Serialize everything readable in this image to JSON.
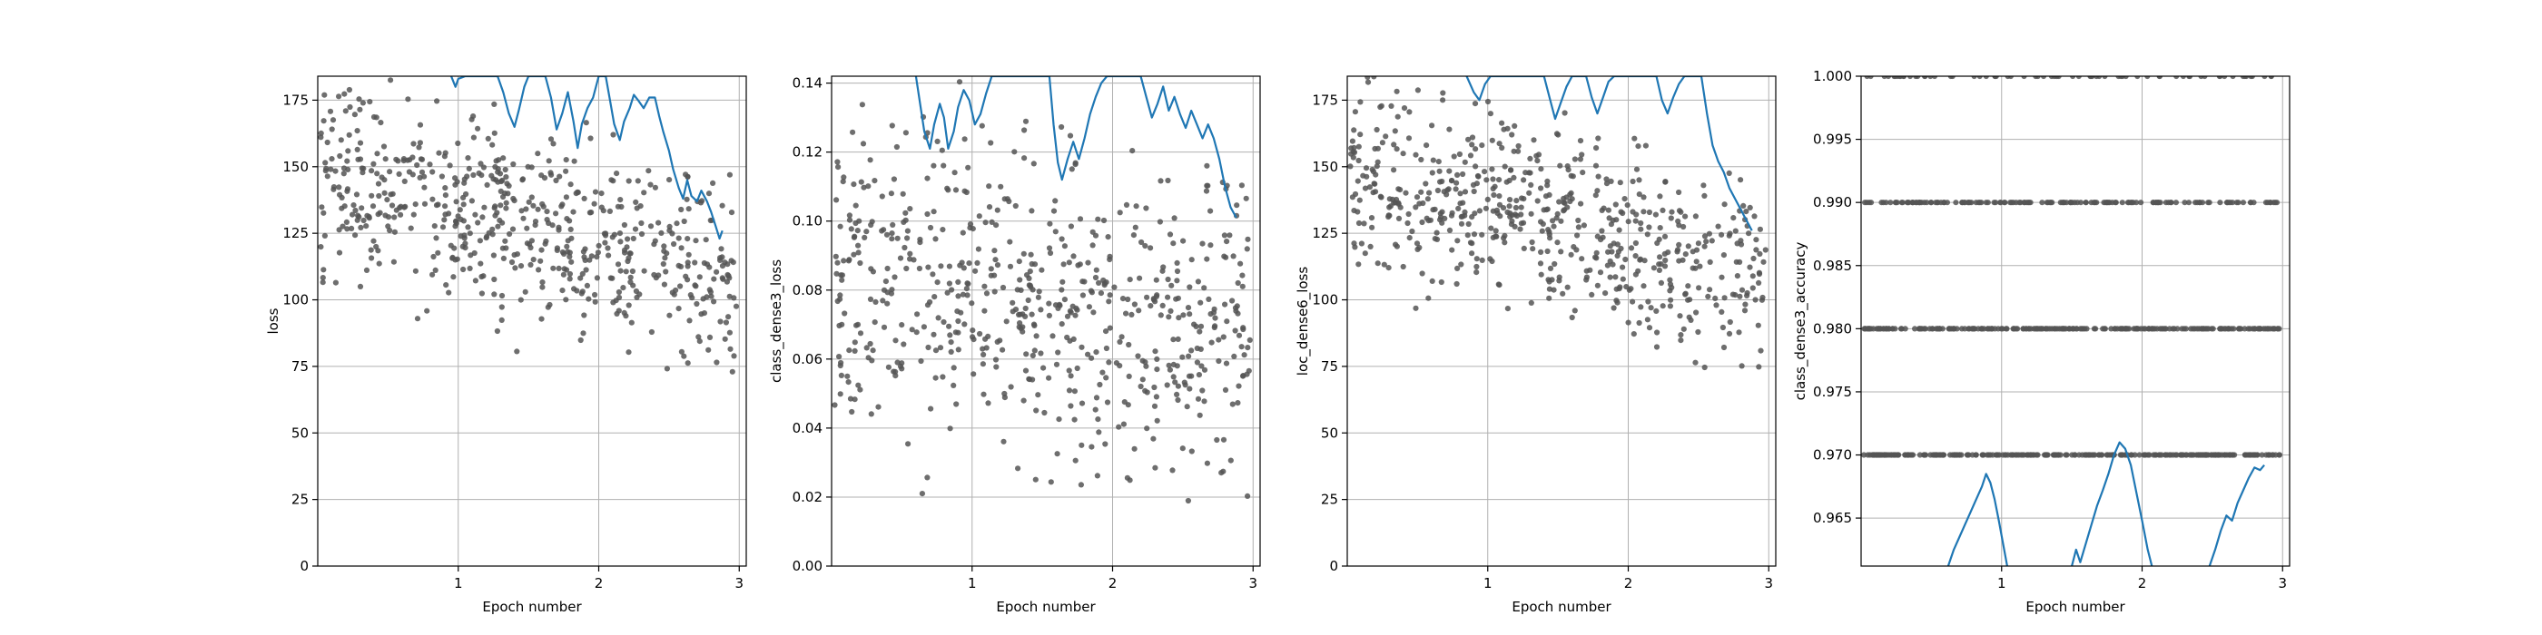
{
  "chart_data": [
    {
      "type": "scatter",
      "xlabel": "Epoch number",
      "ylabel": "loss",
      "xlim": [
        0,
        3.05
      ],
      "ylim": [
        0,
        184
      ],
      "xticks": [
        1,
        2,
        3
      ],
      "yticks": [
        0,
        25,
        50,
        75,
        100,
        125,
        150,
        175
      ],
      "ytick_labels": [
        "0",
        "25",
        "50",
        "75",
        "100",
        "125",
        "150",
        "175"
      ],
      "grid": true,
      "scatter_color": "#555555",
      "line_color": "#1f77b4",
      "scatter_seed": 11,
      "scatter_count": 600,
      "scatter_range": [
        60,
        184
      ],
      "scatter_center_start": 148,
      "scatter_center_end": 108,
      "scatter_spread": 32,
      "line_points": [
        [
          0.95,
          184
        ],
        [
          0.98,
          180
        ],
        [
          1.0,
          183
        ],
        [
          1.05,
          184
        ],
        [
          1.28,
          184
        ],
        [
          1.32,
          178
        ],
        [
          1.36,
          170
        ],
        [
          1.4,
          165
        ],
        [
          1.43,
          171
        ],
        [
          1.47,
          180
        ],
        [
          1.5,
          184
        ],
        [
          1.62,
          184
        ],
        [
          1.66,
          176
        ],
        [
          1.7,
          164
        ],
        [
          1.74,
          170
        ],
        [
          1.78,
          178
        ],
        [
          1.82,
          167
        ],
        [
          1.85,
          157
        ],
        [
          1.88,
          166
        ],
        [
          1.92,
          172
        ],
        [
          1.96,
          176
        ],
        [
          2.0,
          184
        ],
        [
          2.05,
          184
        ],
        [
          2.08,
          175
        ],
        [
          2.11,
          166
        ],
        [
          2.15,
          160
        ],
        [
          2.18,
          167
        ],
        [
          2.22,
          172
        ],
        [
          2.25,
          177
        ],
        [
          2.28,
          175
        ],
        [
          2.32,
          172
        ],
        [
          2.36,
          176
        ],
        [
          2.4,
          176
        ],
        [
          2.43,
          169
        ],
        [
          2.46,
          163
        ],
        [
          2.5,
          156
        ],
        [
          2.53,
          149
        ],
        [
          2.57,
          142
        ],
        [
          2.6,
          138
        ],
        [
          2.63,
          145
        ],
        [
          2.66,
          139
        ],
        [
          2.7,
          137
        ],
        [
          2.73,
          141
        ],
        [
          2.77,
          137
        ],
        [
          2.8,
          133
        ],
        [
          2.83,
          128
        ],
        [
          2.86,
          123
        ],
        [
          2.88,
          126
        ]
      ]
    },
    {
      "type": "scatter",
      "xlabel": "Epoch number",
      "ylabel": "class_dense3_loss",
      "xlim": [
        0,
        3.05
      ],
      "ylim": [
        0,
        0.142
      ],
      "xticks": [
        1,
        2,
        3
      ],
      "yticks": [
        0,
        0.02,
        0.04,
        0.06,
        0.08,
        0.1,
        0.12,
        0.14
      ],
      "ytick_labels": [
        "0.00",
        "0.02",
        "0.04",
        "0.06",
        "0.08",
        "0.10",
        "0.12",
        "0.14"
      ],
      "grid": true,
      "scatter_color": "#555555",
      "line_color": "#1f77b4",
      "scatter_seed": 23,
      "scatter_count": 620,
      "scatter_range": [
        0.004,
        0.142
      ],
      "scatter_center_start": 0.085,
      "scatter_center_end": 0.07,
      "scatter_spread": 0.04,
      "line_points": [
        [
          0.6,
          0.142
        ],
        [
          0.63,
          0.134
        ],
        [
          0.66,
          0.126
        ],
        [
          0.7,
          0.121
        ],
        [
          0.73,
          0.128
        ],
        [
          0.77,
          0.134
        ],
        [
          0.8,
          0.13
        ],
        [
          0.83,
          0.121
        ],
        [
          0.87,
          0.126
        ],
        [
          0.9,
          0.133
        ],
        [
          0.94,
          0.138
        ],
        [
          0.98,
          0.135
        ],
        [
          1.02,
          0.128
        ],
        [
          1.06,
          0.131
        ],
        [
          1.1,
          0.137
        ],
        [
          1.14,
          0.142
        ],
        [
          1.55,
          0.142
        ],
        [
          1.58,
          0.128
        ],
        [
          1.61,
          0.117
        ],
        [
          1.64,
          0.112
        ],
        [
          1.68,
          0.118
        ],
        [
          1.72,
          0.123
        ],
        [
          1.76,
          0.118
        ],
        [
          1.8,
          0.124
        ],
        [
          1.84,
          0.131
        ],
        [
          1.88,
          0.136
        ],
        [
          1.92,
          0.14
        ],
        [
          1.96,
          0.142
        ],
        [
          2.2,
          0.142
        ],
        [
          2.24,
          0.136
        ],
        [
          2.28,
          0.13
        ],
        [
          2.32,
          0.134
        ],
        [
          2.36,
          0.139
        ],
        [
          2.4,
          0.132
        ],
        [
          2.44,
          0.136
        ],
        [
          2.48,
          0.131
        ],
        [
          2.52,
          0.127
        ],
        [
          2.56,
          0.132
        ],
        [
          2.6,
          0.128
        ],
        [
          2.64,
          0.124
        ],
        [
          2.68,
          0.128
        ],
        [
          2.72,
          0.124
        ],
        [
          2.76,
          0.118
        ],
        [
          2.8,
          0.11
        ],
        [
          2.84,
          0.104
        ],
        [
          2.88,
          0.101
        ]
      ]
    },
    {
      "type": "scatter",
      "xlabel": "Epoch number",
      "ylabel": "loc_dense6_loss",
      "xlim": [
        0,
        3.05
      ],
      "ylim": [
        0,
        184
      ],
      "xticks": [
        1,
        2,
        3
      ],
      "yticks": [
        0,
        25,
        50,
        75,
        100,
        125,
        150,
        175
      ],
      "ytick_labels": [
        "0",
        "25",
        "50",
        "75",
        "100",
        "125",
        "150",
        "175"
      ],
      "grid": true,
      "scatter_color": "#555555",
      "line_color": "#1f77b4",
      "scatter_seed": 37,
      "scatter_count": 600,
      "scatter_range": [
        60,
        184
      ],
      "scatter_center_start": 148,
      "scatter_center_end": 108,
      "scatter_spread": 32,
      "line_points": [
        [
          0.85,
          184
        ],
        [
          0.9,
          178
        ],
        [
          0.94,
          175
        ],
        [
          0.98,
          181
        ],
        [
          1.02,
          184
        ],
        [
          1.4,
          184
        ],
        [
          1.44,
          176
        ],
        [
          1.48,
          168
        ],
        [
          1.52,
          174
        ],
        [
          1.56,
          180
        ],
        [
          1.6,
          184
        ],
        [
          1.7,
          184
        ],
        [
          1.74,
          176
        ],
        [
          1.78,
          170
        ],
        [
          1.82,
          176
        ],
        [
          1.86,
          182
        ],
        [
          1.9,
          184
        ],
        [
          2.2,
          184
        ],
        [
          2.24,
          175
        ],
        [
          2.28,
          170
        ],
        [
          2.32,
          176
        ],
        [
          2.36,
          181
        ],
        [
          2.4,
          184
        ],
        [
          2.52,
          184
        ],
        [
          2.56,
          170
        ],
        [
          2.6,
          158
        ],
        [
          2.64,
          152
        ],
        [
          2.68,
          148
        ],
        [
          2.72,
          142
        ],
        [
          2.76,
          138
        ],
        [
          2.8,
          134
        ],
        [
          2.84,
          130
        ],
        [
          2.88,
          126
        ]
      ]
    },
    {
      "type": "scatter",
      "xlabel": "Epoch number",
      "ylabel": "class_dense3_accuracy",
      "xlim": [
        0,
        3.05
      ],
      "ylim": [
        0.9612,
        1.0
      ],
      "xticks": [
        1,
        2,
        3
      ],
      "yticks": [
        0.965,
        0.97,
        0.975,
        0.98,
        0.985,
        0.99,
        0.995,
        1.0
      ],
      "ytick_labels": [
        "0.965",
        "0.970",
        "0.975",
        "0.980",
        "0.985",
        "0.990",
        "0.995",
        "1.000"
      ],
      "grid": true,
      "scatter_color": "#555555",
      "line_color": "#1f77b4",
      "scatter_seed": 51,
      "scatter_bands": [
        {
          "y": 1.0,
          "count": 70
        },
        {
          "y": 0.99,
          "count": 150
        },
        {
          "y": 0.98,
          "count": 230
        },
        {
          "y": 0.97,
          "count": 260
        }
      ],
      "line_segments": [
        [
          [
            0.62,
            0.9612
          ],
          [
            0.66,
            0.9625
          ],
          [
            0.7,
            0.9635
          ],
          [
            0.74,
            0.9645
          ],
          [
            0.78,
            0.9655
          ],
          [
            0.82,
            0.9665
          ],
          [
            0.86,
            0.9675
          ],
          [
            0.89,
            0.9685
          ],
          [
            0.92,
            0.9678
          ],
          [
            0.95,
            0.9665
          ],
          [
            0.98,
            0.9648
          ],
          [
            1.01,
            0.963
          ],
          [
            1.04,
            0.9612
          ]
        ],
        [
          [
            1.5,
            0.9612
          ],
          [
            1.53,
            0.9625
          ],
          [
            1.56,
            0.9615
          ],
          [
            1.6,
            0.963
          ],
          [
            1.64,
            0.9645
          ],
          [
            1.68,
            0.966
          ],
          [
            1.72,
            0.9672
          ],
          [
            1.76,
            0.9685
          ],
          [
            1.8,
            0.97
          ],
          [
            1.84,
            0.971
          ],
          [
            1.88,
            0.9705
          ],
          [
            1.92,
            0.9692
          ],
          [
            1.96,
            0.967
          ],
          [
            2.0,
            0.9648
          ],
          [
            2.04,
            0.9625
          ],
          [
            2.07,
            0.9612
          ]
        ],
        [
          [
            2.48,
            0.9612
          ],
          [
            2.52,
            0.9625
          ],
          [
            2.56,
            0.964
          ],
          [
            2.6,
            0.9652
          ],
          [
            2.64,
            0.9648
          ],
          [
            2.68,
            0.9662
          ],
          [
            2.72,
            0.9672
          ],
          [
            2.76,
            0.9682
          ],
          [
            2.8,
            0.969
          ],
          [
            2.84,
            0.9688
          ],
          [
            2.87,
            0.9692
          ]
        ]
      ]
    }
  ]
}
